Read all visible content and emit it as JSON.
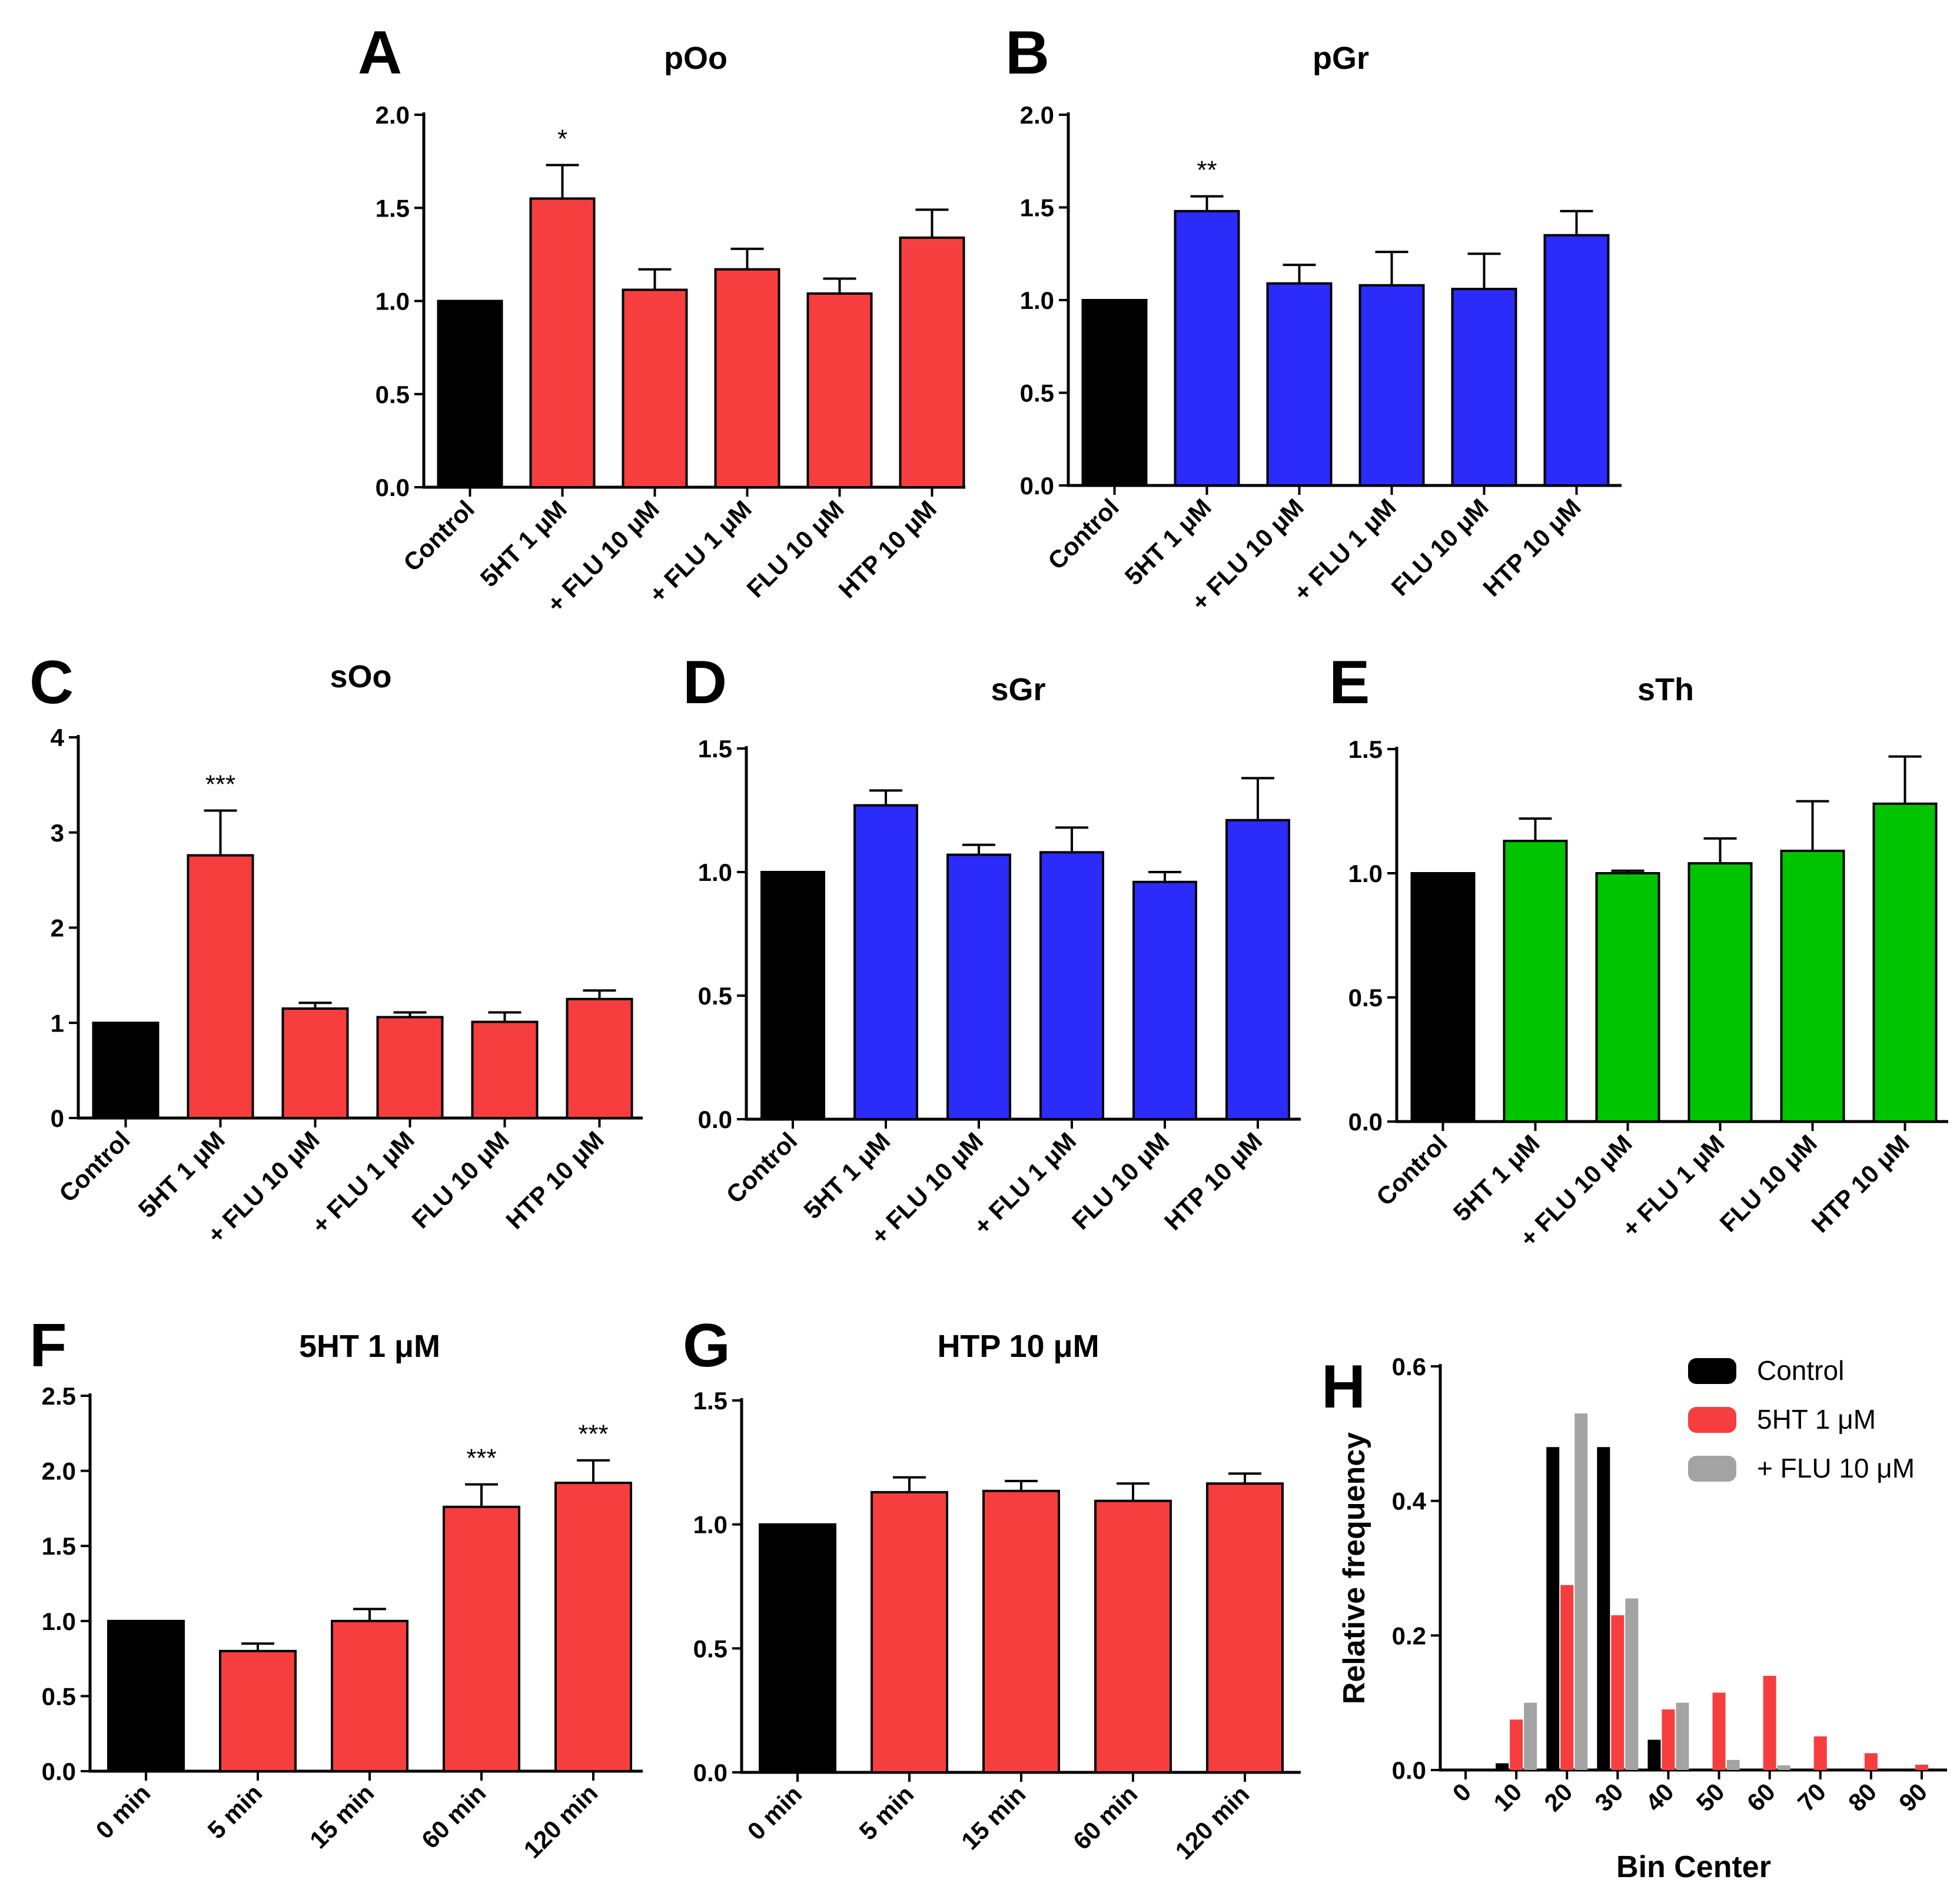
{
  "figure": {
    "background": "#ffffff",
    "colors": {
      "control": "#000000",
      "red": "#f73e3e",
      "blue": "#2b2bfa",
      "green": "#00c400",
      "gray": "#a3a3a3"
    }
  },
  "chart_data": [
    {
      "id": "A",
      "panel_letter": "A",
      "type": "bar",
      "title": "pOo",
      "xlabel": "",
      "ylabel": "",
      "categories": [
        "Control",
        "5HT 1 μM",
        "+ FLU 10 μM",
        "+ FLU 1 μM",
        "FLU 10 μM",
        "HTP 10 μM"
      ],
      "values": [
        1.0,
        1.55,
        1.06,
        1.17,
        1.04,
        1.34
      ],
      "errors": [
        0,
        0.18,
        0.11,
        0.11,
        0.08,
        0.15
      ],
      "annotations": [
        "",
        "*",
        "",
        "",
        "",
        ""
      ],
      "bar_colors": [
        "#000000",
        "#f73e3e",
        "#f73e3e",
        "#f73e3e",
        "#f73e3e",
        "#f73e3e"
      ],
      "ylim": [
        0,
        2.0
      ],
      "yticks": [
        "0.0",
        "0.5",
        "1.0",
        "1.5",
        "2.0"
      ],
      "grid": false
    },
    {
      "id": "B",
      "panel_letter": "B",
      "type": "bar",
      "title": "pGr",
      "xlabel": "",
      "ylabel": "",
      "categories": [
        "Control",
        "5HT 1 μM",
        "+ FLU 10 μM",
        "+ FLU 1 μM",
        "FLU 10 μM",
        "HTP 10 μM"
      ],
      "values": [
        1.0,
        1.48,
        1.09,
        1.08,
        1.06,
        1.35
      ],
      "errors": [
        0,
        0.08,
        0.1,
        0.18,
        0.19,
        0.13
      ],
      "annotations": [
        "",
        "**",
        "",
        "",
        "",
        ""
      ],
      "bar_colors": [
        "#000000",
        "#2b2bfa",
        "#2b2bfa",
        "#2b2bfa",
        "#2b2bfa",
        "#2b2bfa"
      ],
      "ylim": [
        0,
        2.0
      ],
      "yticks": [
        "0.0",
        "0.5",
        "1.0",
        "1.5",
        "2.0"
      ],
      "grid": false
    },
    {
      "id": "C",
      "panel_letter": "C",
      "type": "bar",
      "title": "sOo",
      "xlabel": "",
      "ylabel": "",
      "categories": [
        "Control",
        "5HT 1 μM",
        "+ FLU 10 μM",
        "+ FLU 1 μM",
        "FLU 10 μM",
        "HTP 10 μM"
      ],
      "values": [
        1.0,
        2.76,
        1.15,
        1.06,
        1.01,
        1.25
      ],
      "errors": [
        0,
        0.47,
        0.06,
        0.05,
        0.1,
        0.09
      ],
      "annotations": [
        "",
        "***",
        "",
        "",
        "",
        ""
      ],
      "bar_colors": [
        "#000000",
        "#f73e3e",
        "#f73e3e",
        "#f73e3e",
        "#f73e3e",
        "#f73e3e"
      ],
      "ylim": [
        0,
        4
      ],
      "yticks": [
        "0",
        "1",
        "2",
        "3",
        "4"
      ],
      "grid": false
    },
    {
      "id": "D",
      "panel_letter": "D",
      "type": "bar",
      "title": "sGr",
      "xlabel": "",
      "ylabel": "",
      "categories": [
        "Control",
        "5HT 1 μM",
        "+ FLU 10 μM",
        "+ FLU 1 μM",
        "FLU 10 μM",
        "HTP 10 μM"
      ],
      "values": [
        1.0,
        1.27,
        1.07,
        1.08,
        0.96,
        1.21
      ],
      "errors": [
        0,
        0.06,
        0.04,
        0.1,
        0.04,
        0.17
      ],
      "annotations": [
        "",
        "",
        "",
        "",
        "",
        ""
      ],
      "bar_colors": [
        "#000000",
        "#2b2bfa",
        "#2b2bfa",
        "#2b2bfa",
        "#2b2bfa",
        "#2b2bfa"
      ],
      "ylim": [
        0,
        1.5
      ],
      "yticks": [
        "0.0",
        "0.5",
        "1.0",
        "1.5"
      ],
      "grid": false
    },
    {
      "id": "E",
      "panel_letter": "E",
      "type": "bar",
      "title": "sTh",
      "xlabel": "",
      "ylabel": "",
      "categories": [
        "Control",
        "5HT 1 μM",
        "+ FLU 10 μM",
        "+ FLU 1 μM",
        "FLU 10 μM",
        "HTP 10 μM"
      ],
      "values": [
        1.0,
        1.13,
        1.0,
        1.04,
        1.09,
        1.28
      ],
      "errors": [
        0,
        0.09,
        0.01,
        0.1,
        0.2,
        0.19
      ],
      "annotations": [
        "",
        "",
        "",
        "",
        "",
        ""
      ],
      "bar_colors": [
        "#000000",
        "#00c400",
        "#00c400",
        "#00c400",
        "#00c400",
        "#00c400"
      ],
      "ylim": [
        0,
        1.5
      ],
      "yticks": [
        "0.0",
        "0.5",
        "1.0",
        "1.5"
      ],
      "grid": false
    },
    {
      "id": "F",
      "panel_letter": "F",
      "type": "bar",
      "title": "5HT 1 μM",
      "xlabel": "",
      "ylabel": "",
      "categories": [
        "0 min",
        "5 min",
        "15 min",
        "60 min",
        "120 min"
      ],
      "values": [
        1.0,
        0.8,
        1.0,
        1.76,
        1.92
      ],
      "errors": [
        0,
        0.05,
        0.08,
        0.15,
        0.15
      ],
      "annotations": [
        "",
        "",
        "",
        "***",
        "***"
      ],
      "bar_colors": [
        "#000000",
        "#f73e3e",
        "#f73e3e",
        "#f73e3e",
        "#f73e3e"
      ],
      "ylim": [
        0,
        2.5
      ],
      "yticks": [
        "0.0",
        "0.5",
        "1.0",
        "1.5",
        "2.0",
        "2.5"
      ],
      "grid": false
    },
    {
      "id": "G",
      "panel_letter": "G",
      "type": "bar",
      "title": "HTP 10 μM",
      "xlabel": "",
      "ylabel": "",
      "categories": [
        "0 min",
        "5 min",
        "15 min",
        "60 min",
        "120 min"
      ],
      "values": [
        1.0,
        1.13,
        1.135,
        1.095,
        1.165
      ],
      "errors": [
        0,
        0.06,
        0.04,
        0.07,
        0.04
      ],
      "annotations": [
        "",
        "",
        "",
        "",
        ""
      ],
      "bar_colors": [
        "#000000",
        "#f73e3e",
        "#f73e3e",
        "#f73e3e",
        "#f73e3e"
      ],
      "ylim": [
        0,
        1.5
      ],
      "yticks": [
        "0.0",
        "0.5",
        "1.0",
        "1.5"
      ],
      "grid": false
    },
    {
      "id": "H",
      "panel_letter": "H",
      "type": "bar",
      "title": "",
      "xlabel": "Bin Center",
      "ylabel": "Relative frequency",
      "x": [
        0,
        10,
        20,
        30,
        40,
        50,
        60,
        70,
        80,
        90
      ],
      "xticks": [
        "0",
        "10",
        "20",
        "30",
        "40",
        "50",
        "60",
        "70",
        "80",
        "90"
      ],
      "series": [
        {
          "name": "Control",
          "color": "#000000",
          "values": [
            0,
            0.01,
            0.48,
            0.48,
            0.045,
            0,
            0,
            0,
            0,
            0
          ]
        },
        {
          "name": "5HT 1 μM",
          "color": "#f73e3e",
          "values": [
            0,
            0.075,
            0.275,
            0.23,
            0.09,
            0.115,
            0.14,
            0.05,
            0.025,
            0.008
          ]
        },
        {
          "name": "+ FLU 10 μM",
          "color": "#a3a3a3",
          "values": [
            0,
            0.1,
            0.53,
            0.255,
            0.1,
            0.015,
            0.007,
            0,
            0,
            0
          ]
        }
      ],
      "ylim": [
        0,
        0.6
      ],
      "yticks": [
        "0.0",
        "0.2",
        "0.4",
        "0.6"
      ],
      "legend_position": "top-right",
      "grid": false
    }
  ]
}
